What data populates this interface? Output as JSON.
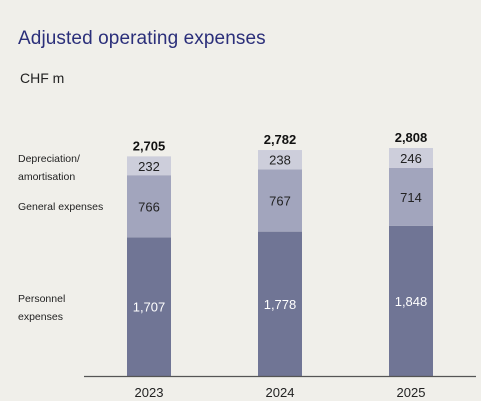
{
  "title": "Adjusted operating expenses",
  "unit": "CHF m",
  "category_labels": {
    "depreciation": [
      "Depreciation/",
      "amortisation"
    ],
    "general": "General expenses",
    "personnel": [
      "Personnel",
      "expenses"
    ]
  },
  "colors": {
    "background": "#f0efea",
    "title": "#2b2f7a",
    "personnel": "#707595",
    "general": "#a2a5bd",
    "depreciation": "#cdcedb",
    "axis": "#555555"
  },
  "chart_data": {
    "type": "bar",
    "stacked": true,
    "title": "Adjusted operating expenses",
    "ylabel": "CHF m",
    "categories": [
      "2023",
      "2024",
      "2025"
    ],
    "series": [
      {
        "name": "Personnel expenses",
        "values": [
          1707,
          1778,
          1848
        ],
        "labels": [
          "1,707",
          "1,778",
          "1,848"
        ]
      },
      {
        "name": "General expenses",
        "values": [
          766,
          767,
          714
        ],
        "labels": [
          "766",
          "767",
          "714"
        ]
      },
      {
        "name": "Depreciation/amortisation",
        "values": [
          232,
          238,
          246
        ],
        "labels": [
          "232",
          "238",
          "246"
        ]
      }
    ],
    "totals": [
      2705,
      2782,
      2808
    ],
    "total_labels": [
      "2,705",
      "2,782",
      "2,808"
    ],
    "ylim": [
      0,
      3000
    ],
    "grid": false,
    "legend": "left"
  }
}
